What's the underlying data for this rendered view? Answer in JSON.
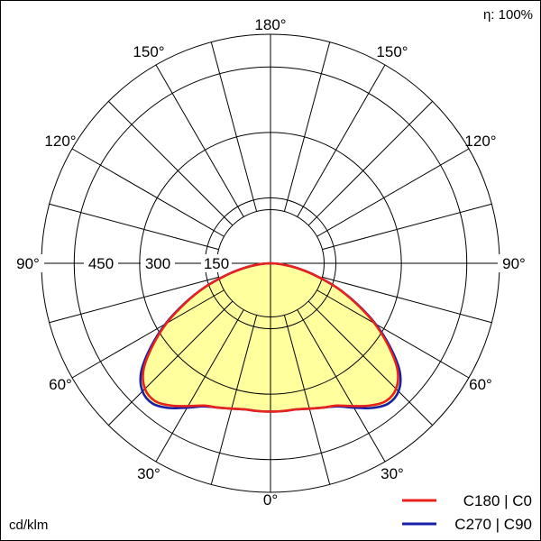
{
  "chart_data": {
    "type": "polar",
    "efficiency_label": "η: 100%",
    "unit_label": "cd/klm",
    "radial_ticks": [
      "150",
      "300",
      "450"
    ],
    "radial_values": [
      150,
      300,
      450
    ],
    "r_max": 525,
    "angle_labels": {
      "top": "180°",
      "upper_left": "150°",
      "upper_right": "150°",
      "mid_left_high": "120°",
      "mid_right_high": "120°",
      "left": "90°",
      "right": "90°",
      "lower_left": "60°",
      "lower_right": "60°",
      "bottom_left": "30°",
      "bottom_right": "30°",
      "bottom": "0°"
    },
    "colors": {
      "fill": "#ffff99",
      "c0": "#e8221c",
      "c90": "#1520a6",
      "grid": "#000000"
    },
    "series": [
      {
        "name": "C180 | C0",
        "color": "#e8221c",
        "angles": [
          0,
          5,
          10,
          15,
          20,
          25,
          30,
          35,
          40,
          45,
          50,
          55,
          60,
          65,
          70,
          75,
          80,
          85,
          90
        ],
        "values": [
          340,
          340,
          340,
          345,
          352,
          360,
          378,
          398,
          412,
          407,
          380,
          330,
          275,
          215,
          160,
          105,
          60,
          25,
          0
        ]
      },
      {
        "name": "C270 | C90",
        "color": "#1520a6",
        "angles": [
          0,
          5,
          10,
          15,
          20,
          25,
          30,
          35,
          40,
          45,
          50,
          55,
          60,
          65,
          70,
          75,
          80,
          85,
          90
        ],
        "values": [
          340,
          340,
          340,
          345,
          352,
          362,
          382,
          405,
          420,
          415,
          387,
          335,
          278,
          217,
          160,
          105,
          60,
          25,
          0
        ]
      }
    ]
  }
}
